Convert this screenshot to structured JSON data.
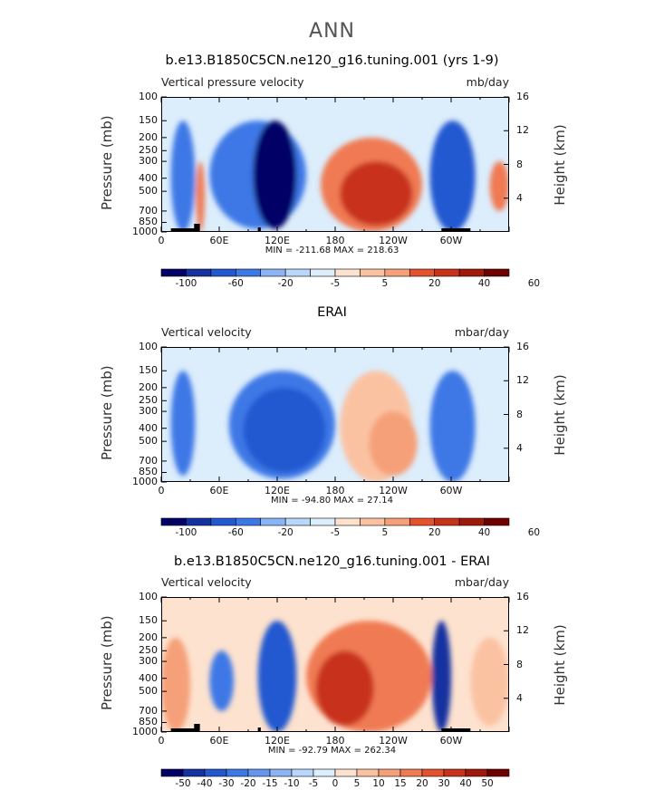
{
  "figure": {
    "title": "ANN"
  },
  "colors": {
    "scale": [
      "#000066",
      "#1432a0",
      "#2358d0",
      "#3c78e6",
      "#6496f0",
      "#8cb4f5",
      "#b9d7fa",
      "#dcedfc",
      "#fde2cf",
      "#fbc2a2",
      "#f5a078",
      "#f07a52",
      "#e4532e",
      "#c8321a",
      "#a01a0c",
      "#700000"
    ],
    "mountain": "#000000"
  },
  "panels": [
    {
      "title": "b.e13.B1850C5CN.ne120_g16.tuning.001 (yrs 1-9)",
      "left_label": "Vertical pressure velocity",
      "right_label": "mb/day",
      "ylabel": "Pressure (mb)",
      "ylabel_right": "Height (km)",
      "minmax": "MIN = -211.68   MAX = 218.63",
      "colorbar_ticks": [
        "-100",
        "-60",
        "-20",
        "-5",
        "5",
        "20",
        "40",
        "60"
      ]
    },
    {
      "title": "ERAI",
      "left_label": "Vertical velocity",
      "right_label": "mbar/day",
      "ylabel": "Pressure (mb)",
      "ylabel_right": "Height (km)",
      "minmax": "MIN = -94.80   MAX = 27.14",
      "colorbar_ticks": [
        "-100",
        "-60",
        "-20",
        "-5",
        "5",
        "20",
        "40",
        "60"
      ]
    },
    {
      "title": "b.e13.B1850C5CN.ne120_g16.tuning.001 - ERAI",
      "left_label": "Vertical velocity",
      "right_label": "mbar/day",
      "ylabel": "Pressure (mb)",
      "ylabel_right": "Height (km)",
      "minmax": "MIN = -92.79   MAX = 262.34",
      "colorbar_ticks": [
        "-50",
        "-40",
        "-30",
        "-20",
        "-15",
        "-10",
        "-5",
        "0",
        "5",
        "10",
        "15",
        "20",
        "30",
        "40",
        "50"
      ]
    }
  ],
  "chart_data": [
    {
      "type": "heatmap",
      "title": "b.e13.B1850C5CN.ne120_g16.tuning.001 (yrs 1-9)",
      "xlabel": "",
      "ylabel": "Pressure (mb)",
      "y2label": "Height (km)",
      "x_ticks": [
        "0",
        "60E",
        "120E",
        "180",
        "120W",
        "60W"
      ],
      "x_range": [
        0,
        360
      ],
      "y_ticks": [
        "100",
        "150",
        "200",
        "250",
        "300",
        "400",
        "500",
        "700",
        "850",
        "1000"
      ],
      "y_range_mb": [
        1000,
        100
      ],
      "y2_ticks": [
        "4",
        "8",
        "12",
        "16"
      ],
      "units": "mb/day",
      "min": -211.68,
      "max": 218.63,
      "contour_levels": [
        -100,
        -80,
        -60,
        -40,
        -20,
        -10,
        -5,
        0,
        5,
        10,
        20,
        30,
        40,
        60
      ],
      "features": [
        {
          "lon_range": [
            10,
            35
          ],
          "p_range": [
            1000,
            150
          ],
          "value": -40
        },
        {
          "lon_range": [
            36,
            45
          ],
          "p_range": [
            1000,
            300
          ],
          "value": 20
        },
        {
          "lon_range": [
            50,
            150
          ],
          "p_range": [
            950,
            150
          ],
          "value": -40
        },
        {
          "lon_range": [
            95,
            140
          ],
          "p_range": [
            950,
            150
          ],
          "value": -100
        },
        {
          "lon_range": [
            165,
            270
          ],
          "p_range": [
            1000,
            200
          ],
          "value": 20
        },
        {
          "lon_range": [
            185,
            260
          ],
          "p_range": [
            900,
            300
          ],
          "value": 40
        },
        {
          "lon_range": [
            278,
            325
          ],
          "p_range": [
            1000,
            150
          ],
          "value": -60
        },
        {
          "lon_range": [
            340,
            360
          ],
          "p_range": [
            700,
            300
          ],
          "value": 20
        }
      ]
    },
    {
      "type": "heatmap",
      "title": "ERAI",
      "xlabel": "",
      "ylabel": "Pressure (mb)",
      "y2label": "Height (km)",
      "x_ticks": [
        "0",
        "60E",
        "120E",
        "180",
        "120W",
        "60W"
      ],
      "x_range": [
        0,
        360
      ],
      "y_ticks": [
        "100",
        "150",
        "200",
        "250",
        "300",
        "400",
        "500",
        "700",
        "850",
        "1000"
      ],
      "y_range_mb": [
        1000,
        100
      ],
      "y2_ticks": [
        "4",
        "8",
        "12",
        "16"
      ],
      "units": "mbar/day",
      "min": -94.8,
      "max": 27.14,
      "contour_levels": [
        -100,
        -80,
        -60,
        -40,
        -20,
        -10,
        -5,
        0,
        5,
        10,
        20,
        30,
        40,
        60
      ],
      "features": [
        {
          "lon_range": [
            10,
            35
          ],
          "p_range": [
            900,
            150
          ],
          "value": -40
        },
        {
          "lon_range": [
            70,
            180
          ],
          "p_range": [
            950,
            150
          ],
          "value": -40
        },
        {
          "lon_range": [
            85,
            170
          ],
          "p_range": [
            850,
            200
          ],
          "value": -60
        },
        {
          "lon_range": [
            185,
            260
          ],
          "p_range": [
            1000,
            150
          ],
          "value": 5
        },
        {
          "lon_range": [
            215,
            265
          ],
          "p_range": [
            900,
            300
          ],
          "value": 10
        },
        {
          "lon_range": [
            278,
            325
          ],
          "p_range": [
            1000,
            150
          ],
          "value": -40
        }
      ]
    },
    {
      "type": "heatmap",
      "title": "b.e13.B1850C5CN.ne120_g16.tuning.001 - ERAI",
      "xlabel": "",
      "ylabel": "Pressure (mb)",
      "y2label": "Height (km)",
      "x_ticks": [
        "0",
        "60E",
        "120E",
        "180",
        "120W",
        "60W"
      ],
      "x_range": [
        0,
        360
      ],
      "y_ticks": [
        "100",
        "150",
        "200",
        "250",
        "300",
        "400",
        "500",
        "700",
        "850",
        "1000"
      ],
      "y_range_mb": [
        1000,
        100
      ],
      "y2_ticks": [
        "4",
        "8",
        "12",
        "16"
      ],
      "units": "mbar/day",
      "min": -92.79,
      "max": 262.34,
      "contour_levels": [
        -50,
        -40,
        -30,
        -20,
        -15,
        -10,
        -5,
        0,
        5,
        10,
        15,
        20,
        30,
        40,
        50
      ],
      "features": [
        {
          "lon_range": [
            0,
            30
          ],
          "p_range": [
            1000,
            200
          ],
          "value": 15
        },
        {
          "lon_range": [
            50,
            75
          ],
          "p_range": [
            700,
            250
          ],
          "value": -20
        },
        {
          "lon_range": [
            100,
            140
          ],
          "p_range": [
            1000,
            150
          ],
          "value": -30
        },
        {
          "lon_range": [
            150,
            280
          ],
          "p_range": [
            1000,
            150
          ],
          "value": 20
        },
        {
          "lon_range": [
            160,
            220
          ],
          "p_range": [
            900,
            250
          ],
          "value": 40
        },
        {
          "lon_range": [
            280,
            300
          ],
          "p_range": [
            1000,
            150
          ],
          "value": -40
        },
        {
          "lon_range": [
            320,
            360
          ],
          "p_range": [
            900,
            200
          ],
          "value": 10
        }
      ]
    }
  ]
}
